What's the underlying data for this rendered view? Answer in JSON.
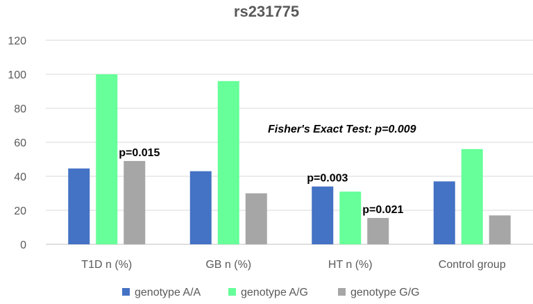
{
  "chart_data": {
    "type": "bar",
    "title": "rs231775",
    "categories": [
      "T1D n (%)",
      "GB n (%)",
      "HT n (%)",
      "Control group"
    ],
    "series": [
      {
        "name": "genotype A/A",
        "values": [
          44.6,
          43,
          34,
          37
        ],
        "color": "#4472c4"
      },
      {
        "name": "genotype A/G",
        "values": [
          100,
          96,
          31,
          56
        ],
        "color": "#66ff99"
      },
      {
        "name": "genotype G/G",
        "values": [
          49,
          30,
          15.5,
          17
        ],
        "color": "#a6a6a6"
      }
    ],
    "ylim": [
      0,
      120
    ],
    "yticks": [
      0,
      20,
      40,
      60,
      80,
      100,
      120
    ],
    "grid": true,
    "legend": "bottom",
    "annotations": [
      {
        "text": "p=0.015",
        "category": 0,
        "series": 2
      },
      {
        "text": "p=0.003",
        "category": 2,
        "series": 0
      },
      {
        "text": "p=0.021",
        "category": 2,
        "series": 2
      },
      {
        "text": "Fisher's Exact Test: p=0.009",
        "category": 2,
        "series": 1,
        "italic": true
      }
    ]
  }
}
